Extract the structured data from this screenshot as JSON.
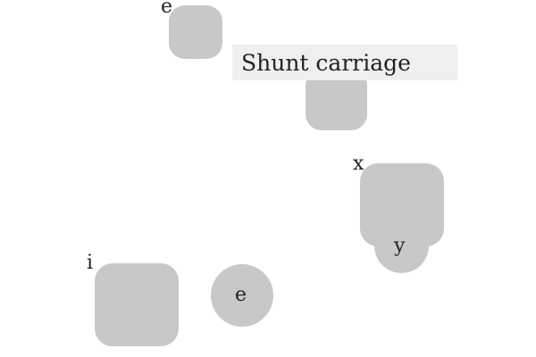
{
  "banner": {
    "text": "Shunt carriage"
  },
  "labels": {
    "top_left": "e",
    "right_upper": "x",
    "right_lower": "y",
    "bottom_left": "i",
    "bottom_circle": "e"
  },
  "colors": {
    "shape_fill": "#c8c8c8",
    "banner_fill": "#efefef",
    "text": "#222222",
    "background": "#ffffff"
  }
}
